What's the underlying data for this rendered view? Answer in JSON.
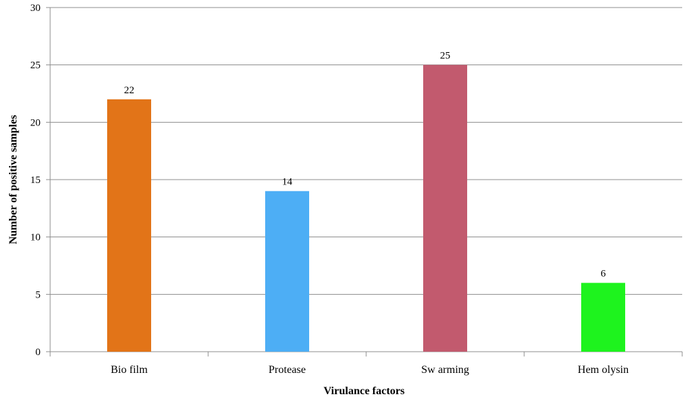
{
  "chart_data": {
    "type": "bar",
    "title": "",
    "xlabel": "Virulance factors",
    "ylabel": "Number of positive samples",
    "ylim": [
      0,
      30
    ],
    "yticks": [
      0,
      5,
      10,
      15,
      20,
      25,
      30
    ],
    "grid": true,
    "legend": "none",
    "categories": [
      "Bio film",
      "Protease",
      "Sw arming",
      "Hem olysin"
    ],
    "values": [
      22,
      14,
      25,
      6
    ],
    "colors": [
      "#e27418",
      "#4daef5",
      "#c25a6e",
      "#1ef31e"
    ]
  }
}
